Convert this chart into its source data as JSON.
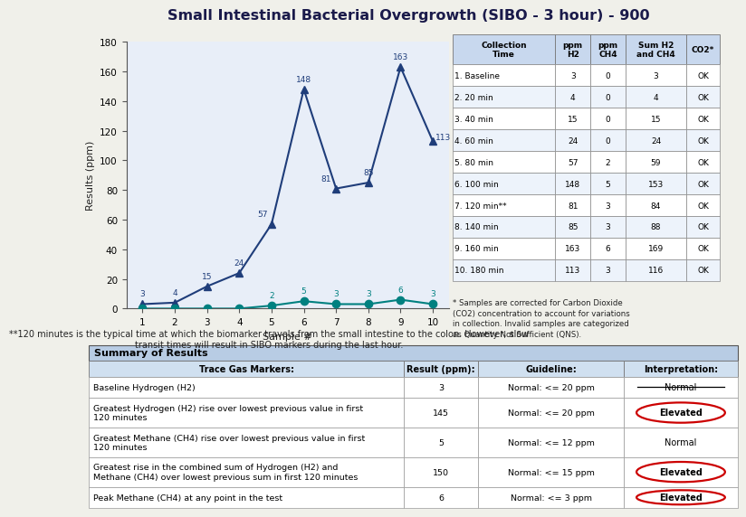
{
  "title": "Small Intestinal Bacterial Overgrowth (SIBO - 3 hour) - 900",
  "xlabel": "Sample #",
  "ylabel": "Results (ppm)",
  "h2_values": [
    3,
    4,
    15,
    24,
    57,
    148,
    81,
    85,
    163,
    113
  ],
  "ch4_values": [
    0,
    0,
    0,
    0,
    2,
    5,
    3,
    3,
    6,
    3
  ],
  "x_values": [
    1,
    2,
    3,
    4,
    5,
    6,
    7,
    8,
    9,
    10
  ],
  "h2_color": "#1f3d7a",
  "ch4_color": "#008080",
  "ylim": [
    0,
    180
  ],
  "yticks": [
    0,
    20,
    40,
    60,
    80,
    100,
    120,
    140,
    160,
    180
  ],
  "table_headers": [
    "Collection\nTime",
    "ppm\nH2",
    "ppm\nCH4",
    "Sum H2\nand CH4",
    "CO2*"
  ],
  "table_rows": [
    [
      "1. Baseline",
      "3",
      "0",
      "3",
      "OK"
    ],
    [
      "2. 20 min",
      "4",
      "0",
      "4",
      "OK"
    ],
    [
      "3. 40 min",
      "15",
      "0",
      "15",
      "OK"
    ],
    [
      "4. 60 min",
      "24",
      "0",
      "24",
      "OK"
    ],
    [
      "5. 80 min",
      "57",
      "2",
      "59",
      "OK"
    ],
    [
      "6. 100 min",
      "148",
      "5",
      "153",
      "OK"
    ],
    [
      "7. 120 min**",
      "81",
      "3",
      "84",
      "OK"
    ],
    [
      "8. 140 min",
      "85",
      "3",
      "88",
      "OK"
    ],
    [
      "9. 160 min",
      "163",
      "6",
      "169",
      "OK"
    ],
    [
      "10. 180 min",
      "113",
      "3",
      "116",
      "OK"
    ]
  ],
  "footnote1": "* Samples are corrected for Carbon Dioxide\n(CO2) concentration to account for variations\nin collection. Invalid samples are categorized\nas Quantity Not Sufficient (QNS).",
  "footnote2": "**120 minutes is the typical time at which the biomarker travels from the small intestine to the colon. However, slow\ntransit times will result in SIBO markers during the last hour.",
  "summary_title": "Summary of Results",
  "summary_col_headers": [
    "Trace Gas Markers:",
    "Result (ppm):",
    "Guideline:",
    "Interpretation:"
  ],
  "summary_rows": [
    [
      "Baseline Hydrogen (H2)",
      "3",
      "Normal: <= 20 ppm",
      "Normal"
    ],
    [
      "Greatest Hydrogen (H2) rise over lowest previous value in first\n120 minutes",
      "145",
      "Normal: <= 20 ppm",
      "Elevated"
    ],
    [
      "Greatest Methane (CH4) rise over lowest previous value in first\n120 minutes",
      "5",
      "Normal: <= 12 ppm",
      "Normal"
    ],
    [
      "Greatest rise in the combined sum of Hydrogen (H2) and\nMethane (CH4) over lowest previous sum in first 120 minutes",
      "150",
      "Normal: <= 15 ppm",
      "Elevated"
    ],
    [
      "Peak Methane (CH4) at any point in the test",
      "6",
      "Normal: <= 3 ppm",
      "Elevated"
    ]
  ],
  "elevated_rows": [
    1,
    3,
    4
  ],
  "bg_color": "#f0f0ea",
  "table_header_bg": "#c8d8ee",
  "summary_header_bg": "#b8cce4",
  "col_header_bg": "#d0e0f0"
}
